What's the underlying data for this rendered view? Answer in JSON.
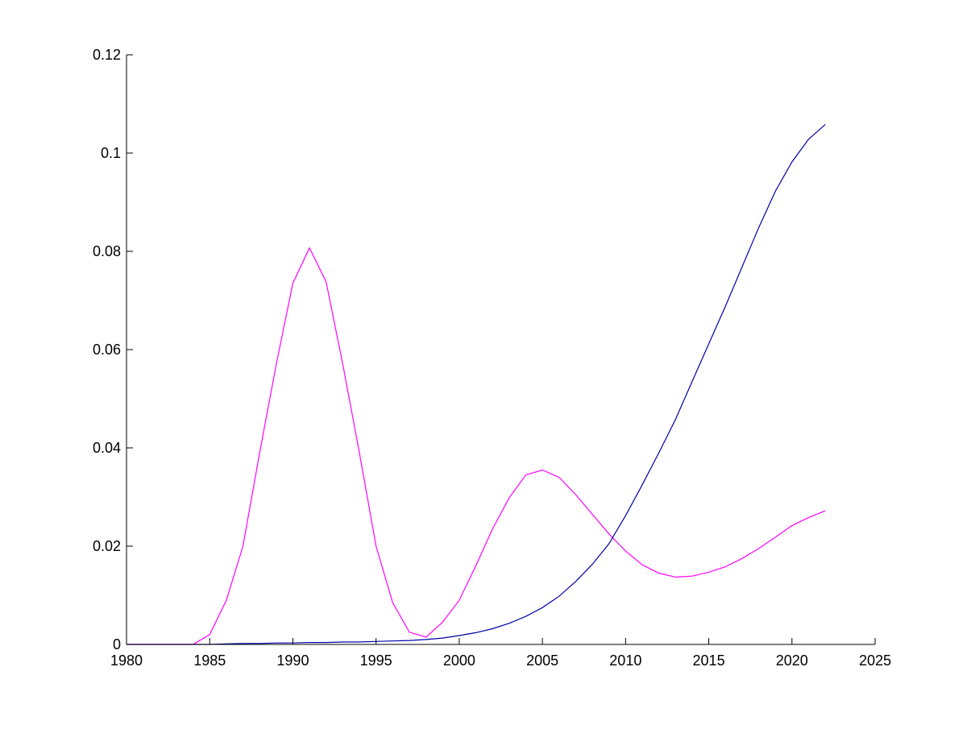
{
  "chart_data": {
    "type": "line",
    "title": "",
    "xlabel": "",
    "ylabel": "",
    "xlim": [
      1980,
      2025
    ],
    "ylim": [
      0,
      0.12
    ],
    "x_ticks": [
      1980,
      1985,
      1990,
      1995,
      2000,
      2005,
      2010,
      2015,
      2020,
      2025
    ],
    "y_ticks": [
      0,
      0.02,
      0.04,
      0.06,
      0.08,
      0.1,
      0.12
    ],
    "x_tick_labels": [
      "1980",
      "1985",
      "1990",
      "1995",
      "2000",
      "2005",
      "2010",
      "2015",
      "2020",
      "2025"
    ],
    "y_tick_labels": [
      "0",
      "0.02",
      "0.04",
      "0.06",
      "0.08",
      "0.1",
      "0.12"
    ],
    "grid": false,
    "legend": "none",
    "series": [
      {
        "color": "#ff00ff",
        "x": [
          1980,
          1981,
          1982,
          1983,
          1984,
          1985,
          1986,
          1987,
          1988,
          1989,
          1990,
          1991,
          1992,
          1993,
          1994,
          1995,
          1996,
          1997,
          1998,
          1999,
          2000,
          2001,
          2002,
          2003,
          2004,
          2005,
          2006,
          2007,
          2008,
          2009,
          2010,
          2011,
          2012,
          2013,
          2014,
          2015,
          2016,
          2017,
          2018,
          2019,
          2020,
          2021,
          2022
        ],
        "values": [
          0,
          0,
          0,
          0,
          0,
          0.002,
          0.009,
          0.02,
          0.039,
          0.057,
          0.0735,
          0.0807,
          0.0738,
          0.057,
          0.039,
          0.02,
          0.0085,
          0.0025,
          0.0015,
          0.0045,
          0.009,
          0.016,
          0.0235,
          0.0298,
          0.0345,
          0.0355,
          0.034,
          0.0305,
          0.0265,
          0.0225,
          0.019,
          0.0162,
          0.0145,
          0.0137,
          0.0139,
          0.0147,
          0.0158,
          0.0175,
          0.0195,
          0.0218,
          0.0242,
          0.0258,
          0.0272
        ]
      },
      {
        "color": "#0000a8",
        "x": [
          1980,
          1981,
          1982,
          1983,
          1984,
          1985,
          1986,
          1987,
          1988,
          1989,
          1990,
          1991,
          1992,
          1993,
          1994,
          1995,
          1996,
          1997,
          1998,
          1999,
          2000,
          2001,
          2002,
          2003,
          2004,
          2005,
          2006,
          2007,
          2008,
          2009,
          2010,
          2011,
          2012,
          2013,
          2014,
          2015,
          2016,
          2017,
          2018,
          2019,
          2020,
          2021,
          2022
        ],
        "values": [
          0,
          0,
          0,
          0,
          0,
          0,
          0.0001,
          0.0002,
          0.0002,
          0.0003,
          0.0003,
          0.0004,
          0.0004,
          0.0005,
          0.0005,
          0.0006,
          0.0007,
          0.0008,
          0.001,
          0.0013,
          0.0018,
          0.0024,
          0.0032,
          0.0043,
          0.0057,
          0.0075,
          0.0098,
          0.0128,
          0.0163,
          0.0205,
          0.0262,
          0.0325,
          0.039,
          0.0458,
          0.0535,
          0.0612,
          0.0688,
          0.0768,
          0.0848,
          0.0922,
          0.0982,
          0.1028,
          0.1058
        ]
      }
    ]
  }
}
